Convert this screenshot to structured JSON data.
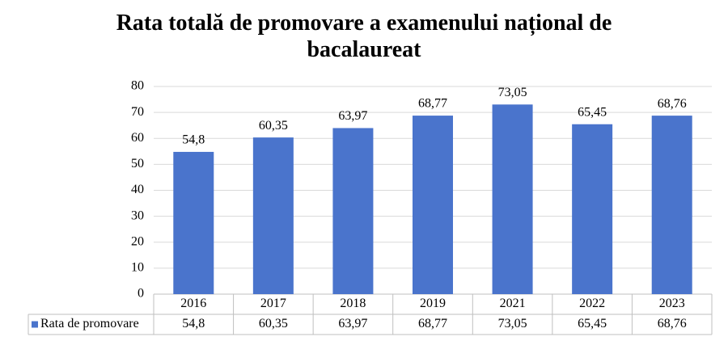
{
  "chart_data": {
    "type": "bar",
    "title": "Rata totală de promovare a examenului național de bacalaureat",
    "categories": [
      "2016",
      "2017",
      "2018",
      "2019",
      "2021",
      "2022",
      "2023"
    ],
    "series": [
      {
        "name": "Rata de promovare",
        "color": "#4a74cc",
        "values": [
          54.8,
          60.35,
          63.97,
          68.77,
          73.05,
          65.45,
          68.76
        ],
        "value_labels": [
          "54,8",
          "60,35",
          "63,97",
          "68,77",
          "73,05",
          "65,45",
          "68,76"
        ]
      }
    ],
    "ylim": [
      0,
      80
    ],
    "yticks": [
      0,
      10,
      20,
      30,
      40,
      50,
      60,
      70,
      80
    ],
    "grid": true,
    "legend": "bottom"
  }
}
